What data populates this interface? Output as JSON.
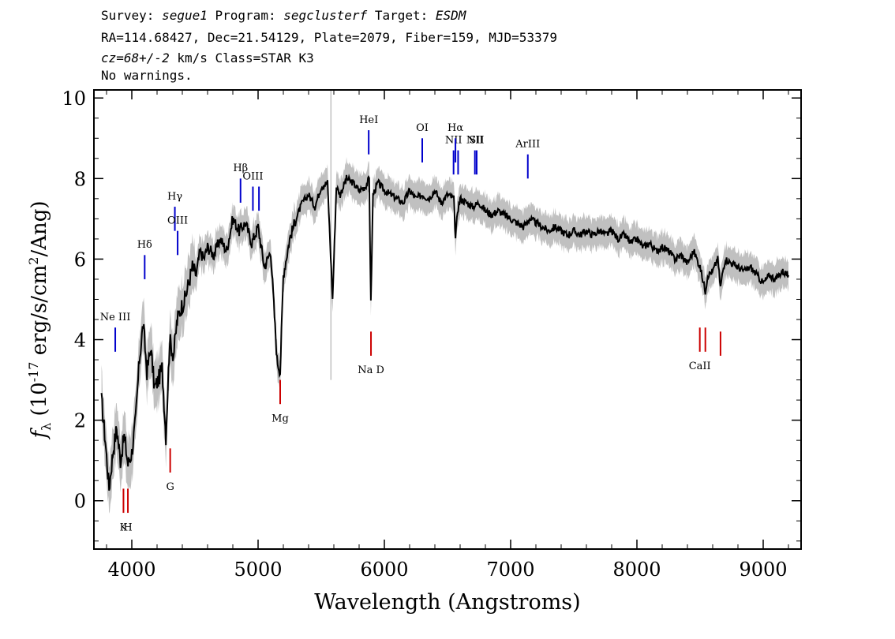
{
  "header": {
    "survey_label": "Survey:",
    "survey": "segue1",
    "program_label": "Program:",
    "program": "segclusterf",
    "target_label": "Target:",
    "target": "ESDM",
    "line2": "RA=114.68427, Dec=21.54129, Plate=2079, Fiber=159, MJD=53379",
    "cz_value": "cz=68+/-2",
    "cz_rest": " km/s Class=STAR K3",
    "line4": "No warnings."
  },
  "chart_data": {
    "type": "line",
    "xlabel": "Wavelength (Angstroms)",
    "ylabel_main": "f",
    "ylabel_sub": "λ",
    "ylabel_rest_a": " (10",
    "ylabel_exp": "-17",
    "ylabel_rest_b": " erg/s/cm",
    "ylabel_exp2": "2",
    "ylabel_rest_c": "/Ang)",
    "xlim": [
      3700,
      9300
    ],
    "ylim": [
      -1.2,
      10.2
    ],
    "x_ticks": [
      4000,
      5000,
      6000,
      7000,
      8000,
      9000
    ],
    "x_tick_labels": [
      "4000",
      "5000",
      "6000",
      "7000",
      "8000",
      "9000"
    ],
    "y_ticks": [
      0,
      2,
      4,
      6,
      8,
      10
    ],
    "y_tick_labels": [
      "0",
      "2",
      "4",
      "6",
      "8",
      "10"
    ],
    "colors": {
      "flux": "#000000",
      "error": "#c0c0c0",
      "emission": "#0000cc",
      "absorption": "#cc0000"
    },
    "series": [
      {
        "role": "flux",
        "x": [
          3760,
          3790,
          3820,
          3850,
          3880,
          3910,
          3940,
          3970,
          4000,
          4030,
          4060,
          4090,
          4120,
          4150,
          4180,
          4210,
          4240,
          4270,
          4300,
          4330,
          4360,
          4390,
          4420,
          4450,
          4480,
          4510,
          4540,
          4570,
          4600,
          4650,
          4700,
          4750,
          4800,
          4850,
          4900,
          4950,
          5000,
          5050,
          5100,
          5150,
          5175,
          5200,
          5250,
          5300,
          5350,
          5400,
          5450,
          5500,
          5550,
          5590,
          5620,
          5650,
          5700,
          5750,
          5800,
          5850,
          5880,
          5893,
          5910,
          5950,
          6000,
          6050,
          6100,
          6150,
          6200,
          6250,
          6300,
          6350,
          6400,
          6450,
          6500,
          6550,
          6563,
          6580,
          6600,
          6650,
          6700,
          6750,
          6800,
          6850,
          6900,
          6950,
          7000,
          7050,
          7100,
          7150,
          7200,
          7250,
          7300,
          7350,
          7400,
          7450,
          7500,
          7550,
          7600,
          7650,
          7700,
          7750,
          7800,
          7850,
          7900,
          7950,
          8000,
          8050,
          8100,
          8150,
          8200,
          8250,
          8300,
          8350,
          8400,
          8450,
          8500,
          8542,
          8560,
          8600,
          8640,
          8662,
          8680,
          8700,
          8750,
          8800,
          8850,
          8900,
          8950,
          9000,
          9050,
          9100,
          9150,
          9200
        ],
        "y": [
          2.5,
          1.5,
          0.3,
          1.2,
          1.8,
          1.0,
          1.6,
          0.9,
          1.2,
          2.0,
          3.5,
          4.4,
          3.2,
          3.8,
          2.8,
          3.0,
          3.3,
          1.6,
          4.0,
          3.6,
          4.5,
          4.8,
          5.0,
          5.4,
          5.8,
          5.6,
          6.2,
          6.0,
          6.3,
          6.1,
          6.5,
          6.2,
          7.0,
          6.7,
          6.9,
          6.4,
          6.8,
          5.8,
          6.2,
          3.5,
          3.2,
          5.6,
          6.5,
          7.0,
          7.4,
          7.6,
          7.3,
          7.8,
          7.9,
          5.0,
          7.8,
          7.6,
          8.0,
          7.9,
          7.7,
          7.8,
          8.0,
          4.9,
          7.6,
          7.9,
          7.7,
          7.6,
          7.5,
          7.4,
          7.7,
          7.5,
          7.6,
          7.5,
          7.7,
          7.4,
          7.6,
          7.5,
          6.5,
          7.2,
          7.5,
          7.4,
          7.3,
          7.4,
          7.2,
          7.1,
          7.2,
          7.1,
          7.0,
          6.9,
          6.8,
          7.0,
          6.9,
          6.8,
          6.7,
          6.8,
          6.7,
          6.6,
          6.7,
          6.6,
          6.7,
          6.6,
          6.7,
          6.6,
          6.7,
          6.5,
          6.6,
          6.4,
          6.5,
          6.3,
          6.4,
          6.2,
          6.3,
          6.2,
          6.0,
          6.1,
          5.9,
          6.2,
          5.8,
          5.2,
          5.6,
          5.7,
          6.0,
          5.3,
          5.7,
          6.0,
          5.9,
          5.8,
          5.7,
          5.8,
          5.6,
          5.4,
          5.6,
          5.5,
          5.7,
          5.6
        ]
      }
    ],
    "line_markers": [
      {
        "label": "Ne III",
        "wave": 3869,
        "kind": "emission",
        "ytop": 4.3,
        "ybot": 3.7,
        "label_y": 4.4
      },
      {
        "label": "Hδ",
        "wave": 4102,
        "kind": "emission",
        "ytop": 6.1,
        "ybot": 5.5,
        "label_y": 6.2
      },
      {
        "label": "Hγ",
        "wave": 4341,
        "kind": "emission",
        "ytop": 7.3,
        "ybot": 6.7,
        "label_y": 7.4
      },
      {
        "label": "OIII",
        "wave": 4363,
        "kind": "emission",
        "ytop": 6.7,
        "ybot": 6.1,
        "label_y": 6.8
      },
      {
        "label": "Hβ",
        "wave": 4861,
        "kind": "emission",
        "ytop": 8.0,
        "ybot": 7.4,
        "label_y": 8.1
      },
      {
        "label": "OIII",
        "wave": 4959,
        "kind": "emission",
        "ytop": 7.8,
        "ybot": 7.2,
        "label_y": 7.9
      },
      {
        "label": "",
        "wave": 5007,
        "kind": "emission",
        "ytop": 7.8,
        "ybot": 7.2,
        "label_y": 7.9
      },
      {
        "label": "HeI",
        "wave": 5876,
        "kind": "emission",
        "ytop": 9.2,
        "ybot": 8.6,
        "label_y": 9.3
      },
      {
        "label": "OI",
        "wave": 6300,
        "kind": "emission",
        "ytop": 9.0,
        "ybot": 8.4,
        "label_y": 9.1
      },
      {
        "label": "NII",
        "wave": 6548,
        "kind": "emission",
        "ytop": 8.7,
        "ybot": 8.1,
        "label_y": 8.8
      },
      {
        "label": "Hα",
        "wave": 6563,
        "kind": "emission",
        "ytop": 9.0,
        "ybot": 8.4,
        "label_y": 9.1
      },
      {
        "label": "",
        "wave": 6584,
        "kind": "emission",
        "ytop": 8.7,
        "ybot": 8.1,
        "label_y": 8.8
      },
      {
        "label": "NII",
        "wave": 6717,
        "kind": "emission",
        "ytop": 8.7,
        "ybot": 8.1,
        "label_y": 8.8
      },
      {
        "label": "SII",
        "wave": 6731,
        "kind": "emission",
        "ytop": 8.7,
        "ybot": 8.1,
        "label_y": 8.8
      },
      {
        "label": "ArIII",
        "wave": 7136,
        "kind": "emission",
        "ytop": 8.6,
        "ybot": 8.0,
        "label_y": 8.7
      },
      {
        "label": "K",
        "wave": 3934,
        "kind": "absorption",
        "ytop": -0.3,
        "ybot": 0.3,
        "label_y": -0.5
      },
      {
        "label": "H",
        "wave": 3969,
        "kind": "absorption",
        "ytop": -0.3,
        "ybot": 0.3,
        "label_y": -0.5
      },
      {
        "label": "G",
        "wave": 4304,
        "kind": "absorption",
        "ytop": 0.7,
        "ybot": 1.3,
        "label_y": 0.5
      },
      {
        "label": "Mg",
        "wave": 5175,
        "kind": "absorption",
        "ytop": 2.4,
        "ybot": 3.0,
        "label_y": 2.2
      },
      {
        "label": "Na D",
        "wave": 5894,
        "kind": "absorption",
        "ytop": 3.6,
        "ybot": 4.2,
        "label_y": 3.4
      },
      {
        "label": "CaII",
        "wave": 8498,
        "kind": "absorption",
        "ytop": 3.7,
        "ybot": 4.3,
        "label_y": 3.5
      },
      {
        "label": "",
        "wave": 8542,
        "kind": "absorption",
        "ytop": 3.7,
        "ybot": 4.3,
        "label_y": 3.5
      },
      {
        "label": "",
        "wave": 8662,
        "kind": "absorption",
        "ytop": 3.6,
        "ybot": 4.2,
        "label_y": 3.4
      }
    ]
  }
}
